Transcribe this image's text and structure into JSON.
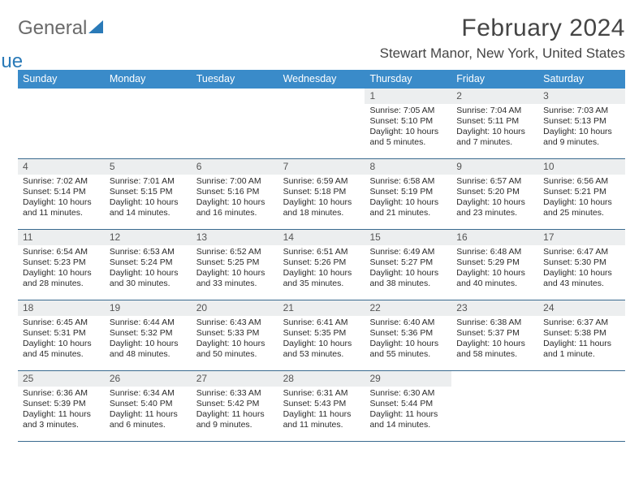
{
  "brand": {
    "part1": "General",
    "part2": "Blue"
  },
  "title": "February 2024",
  "location": "Stewart Manor, New York, United States",
  "colors": {
    "header_bg": "#3a8bc9",
    "header_text": "#ffffff",
    "rule": "#3a6a8f",
    "daynum_bg": "#eceeef",
    "text": "#2b2b2b",
    "title_text": "#454545"
  },
  "dow": [
    "Sunday",
    "Monday",
    "Tuesday",
    "Wednesday",
    "Thursday",
    "Friday",
    "Saturday"
  ],
  "weeks": [
    [
      null,
      null,
      null,
      null,
      {
        "n": "1",
        "sunrise": "7:05 AM",
        "sunset": "5:10 PM",
        "daylight": "10 hours and 5 minutes."
      },
      {
        "n": "2",
        "sunrise": "7:04 AM",
        "sunset": "5:11 PM",
        "daylight": "10 hours and 7 minutes."
      },
      {
        "n": "3",
        "sunrise": "7:03 AM",
        "sunset": "5:13 PM",
        "daylight": "10 hours and 9 minutes."
      }
    ],
    [
      {
        "n": "4",
        "sunrise": "7:02 AM",
        "sunset": "5:14 PM",
        "daylight": "10 hours and 11 minutes."
      },
      {
        "n": "5",
        "sunrise": "7:01 AM",
        "sunset": "5:15 PM",
        "daylight": "10 hours and 14 minutes."
      },
      {
        "n": "6",
        "sunrise": "7:00 AM",
        "sunset": "5:16 PM",
        "daylight": "10 hours and 16 minutes."
      },
      {
        "n": "7",
        "sunrise": "6:59 AM",
        "sunset": "5:18 PM",
        "daylight": "10 hours and 18 minutes."
      },
      {
        "n": "8",
        "sunrise": "6:58 AM",
        "sunset": "5:19 PM",
        "daylight": "10 hours and 21 minutes."
      },
      {
        "n": "9",
        "sunrise": "6:57 AM",
        "sunset": "5:20 PM",
        "daylight": "10 hours and 23 minutes."
      },
      {
        "n": "10",
        "sunrise": "6:56 AM",
        "sunset": "5:21 PM",
        "daylight": "10 hours and 25 minutes."
      }
    ],
    [
      {
        "n": "11",
        "sunrise": "6:54 AM",
        "sunset": "5:23 PM",
        "daylight": "10 hours and 28 minutes."
      },
      {
        "n": "12",
        "sunrise": "6:53 AM",
        "sunset": "5:24 PM",
        "daylight": "10 hours and 30 minutes."
      },
      {
        "n": "13",
        "sunrise": "6:52 AM",
        "sunset": "5:25 PM",
        "daylight": "10 hours and 33 minutes."
      },
      {
        "n": "14",
        "sunrise": "6:51 AM",
        "sunset": "5:26 PM",
        "daylight": "10 hours and 35 minutes."
      },
      {
        "n": "15",
        "sunrise": "6:49 AM",
        "sunset": "5:27 PM",
        "daylight": "10 hours and 38 minutes."
      },
      {
        "n": "16",
        "sunrise": "6:48 AM",
        "sunset": "5:29 PM",
        "daylight": "10 hours and 40 minutes."
      },
      {
        "n": "17",
        "sunrise": "6:47 AM",
        "sunset": "5:30 PM",
        "daylight": "10 hours and 43 minutes."
      }
    ],
    [
      {
        "n": "18",
        "sunrise": "6:45 AM",
        "sunset": "5:31 PM",
        "daylight": "10 hours and 45 minutes."
      },
      {
        "n": "19",
        "sunrise": "6:44 AM",
        "sunset": "5:32 PM",
        "daylight": "10 hours and 48 minutes."
      },
      {
        "n": "20",
        "sunrise": "6:43 AM",
        "sunset": "5:33 PM",
        "daylight": "10 hours and 50 minutes."
      },
      {
        "n": "21",
        "sunrise": "6:41 AM",
        "sunset": "5:35 PM",
        "daylight": "10 hours and 53 minutes."
      },
      {
        "n": "22",
        "sunrise": "6:40 AM",
        "sunset": "5:36 PM",
        "daylight": "10 hours and 55 minutes."
      },
      {
        "n": "23",
        "sunrise": "6:38 AM",
        "sunset": "5:37 PM",
        "daylight": "10 hours and 58 minutes."
      },
      {
        "n": "24",
        "sunrise": "6:37 AM",
        "sunset": "5:38 PM",
        "daylight": "11 hours and 1 minute."
      }
    ],
    [
      {
        "n": "25",
        "sunrise": "6:36 AM",
        "sunset": "5:39 PM",
        "daylight": "11 hours and 3 minutes."
      },
      {
        "n": "26",
        "sunrise": "6:34 AM",
        "sunset": "5:40 PM",
        "daylight": "11 hours and 6 minutes."
      },
      {
        "n": "27",
        "sunrise": "6:33 AM",
        "sunset": "5:42 PM",
        "daylight": "11 hours and 9 minutes."
      },
      {
        "n": "28",
        "sunrise": "6:31 AM",
        "sunset": "5:43 PM",
        "daylight": "11 hours and 11 minutes."
      },
      {
        "n": "29",
        "sunrise": "6:30 AM",
        "sunset": "5:44 PM",
        "daylight": "11 hours and 14 minutes."
      },
      null,
      null
    ]
  ],
  "labels": {
    "sunrise": "Sunrise:",
    "sunset": "Sunset:",
    "daylight": "Daylight:"
  }
}
